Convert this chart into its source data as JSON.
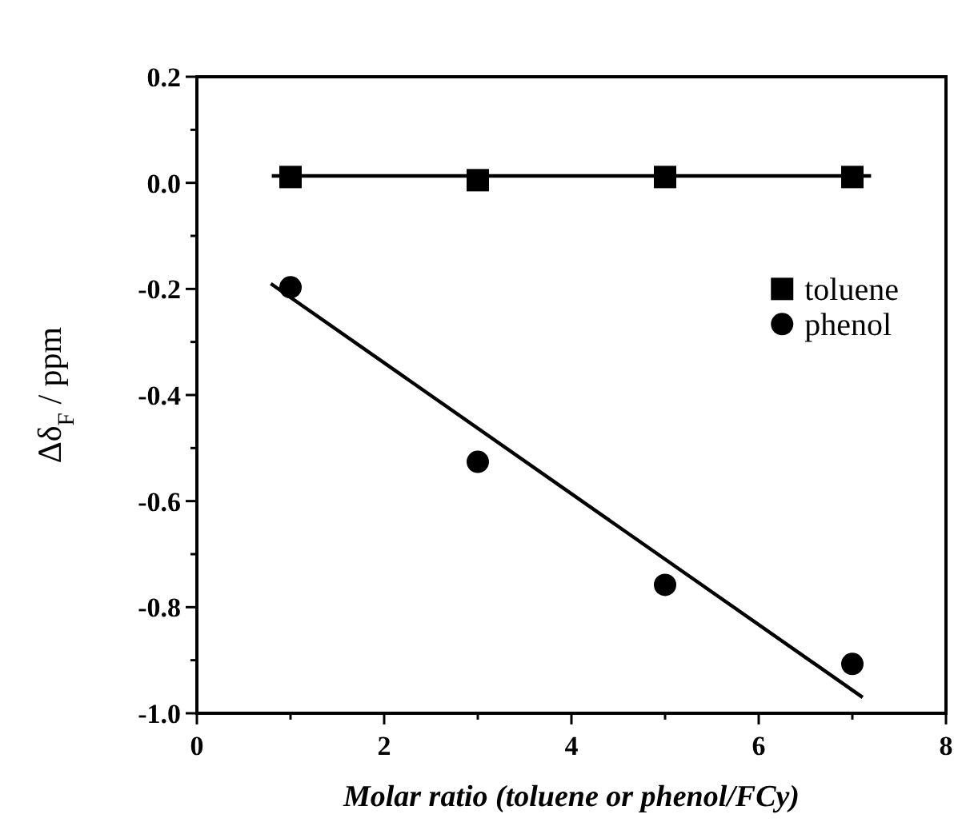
{
  "chart_data": {
    "type": "scatter",
    "xlabel": "Molar ratio (toluene or phenol/FCy)",
    "ylabel": "Δδ$_{F}$ / ppm",
    "xlim": [
      0,
      8
    ],
    "xticks": [
      0,
      {
        "value": 1,
        "label": null
      },
      2,
      {
        "value": 3,
        "label": null
      },
      4,
      {
        "value": 5,
        "label": null
      },
      6,
      {
        "value": 7,
        "label": null
      },
      8
    ],
    "ylim": [
      -1,
      0.2
    ],
    "yticks": [
      {
        "value": -1,
        "label": "-1.0"
      },
      {
        "value": -0.9,
        "label": null
      },
      {
        "value": -0.8,
        "label": "-0.8"
      },
      {
        "value": -0.7,
        "label": null
      },
      {
        "value": -0.6,
        "label": "-0.6"
      },
      {
        "value": -0.5,
        "label": null
      },
      {
        "value": -0.4,
        "label": "-0.4"
      },
      {
        "value": -0.3,
        "label": null
      },
      {
        "value": -0.2,
        "label": "-0.2"
      },
      {
        "value": -0.1,
        "label": null
      },
      {
        "value": 0,
        "label": "0.0"
      },
      {
        "value": 0.1,
        "label": null
      },
      {
        "value": 0.2,
        "label": "0.2"
      }
    ],
    "grid": false,
    "legend": "top right",
    "series": [
      {
        "name": "toluene",
        "marker": "square",
        "color": "#000000",
        "x": [
          1,
          3,
          5,
          7
        ],
        "values": [
          0.011,
          0.005,
          0.011,
          0.011
        ]
      },
      {
        "name": "phenol",
        "marker": "circle",
        "color": "#000000",
        "x": [
          1,
          3,
          5,
          7
        ],
        "values": [
          -0.197,
          -0.526,
          -0.758,
          -0.907
        ]
      },
      {
        "type": "line",
        "marker": "none",
        "color": "#000000",
        "x": [
          0.8,
          7.2
        ],
        "values": [
          0.013,
          0.013
        ]
      },
      {
        "type": "line",
        "marker": "none",
        "color": "#000000",
        "x": [
          0.79,
          7.11
        ],
        "values": [
          -0.19,
          -0.97
        ]
      }
    ]
  }
}
